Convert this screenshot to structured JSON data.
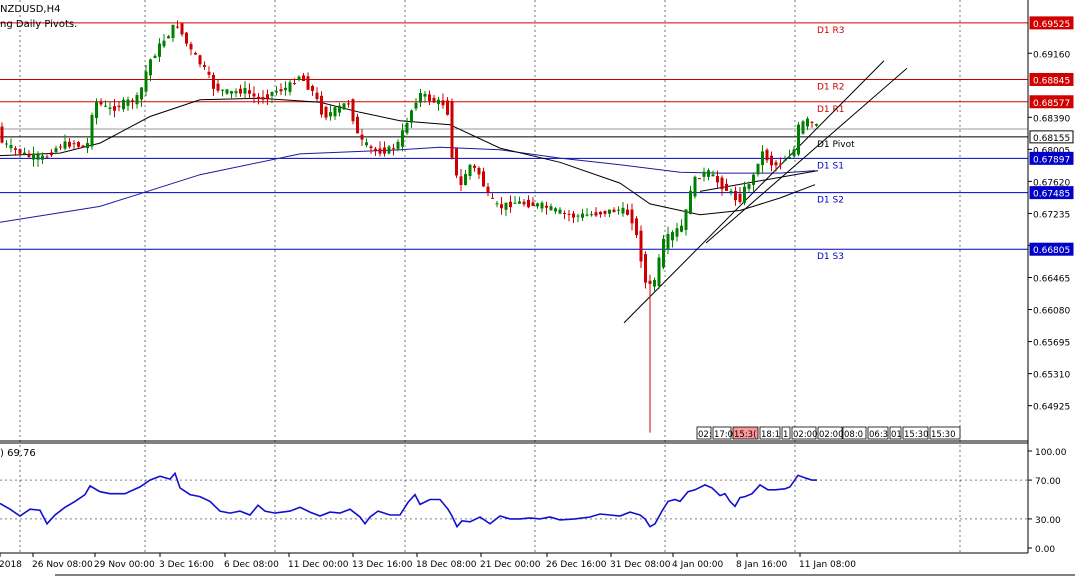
{
  "chart_data": {
    "type": "candlestick",
    "title": "NZDUSD,H4",
    "subtitle": "ng Daily Pivots.",
    "y_range": [
      0.645,
      0.698
    ],
    "y_ticks": [
      "0.69160",
      "0.68390",
      "0.68005",
      "0.67620",
      "0.67235",
      "0.66850",
      "0.66465",
      "0.66080",
      "0.65695",
      "0.65310",
      "0.64925"
    ],
    "x_labels": [
      "2018",
      "26 Nov 08:00",
      "29 Nov 00:00",
      "3 Dec 16:00",
      "6 Dec 08:00",
      "11 Dec 00:00",
      "13 Dec 16:00",
      "18 Dec 08:00",
      "21 Dec 00:00",
      "26 Dec 16:00",
      "31 Dec 08:00",
      "4 Jan 00:00",
      "8 Jan 16:00",
      "11 Jan 08:00"
    ],
    "price_path": [
      [
        0,
        0.6811
      ],
      [
        15,
        0.68
      ],
      [
        30,
        0.6792
      ],
      [
        45,
        0.679
      ],
      [
        60,
        0.6805
      ],
      [
        75,
        0.6808
      ],
      [
        88,
        0.68
      ],
      [
        95,
        0.686
      ],
      [
        110,
        0.6848
      ],
      [
        125,
        0.6856
      ],
      [
        140,
        0.6862
      ],
      [
        150,
        0.6905
      ],
      [
        165,
        0.6932
      ],
      [
        178,
        0.6952
      ],
      [
        190,
        0.6922
      ],
      [
        205,
        0.6898
      ],
      [
        215,
        0.6875
      ],
      [
        230,
        0.6868
      ],
      [
        245,
        0.6872
      ],
      [
        260,
        0.686
      ],
      [
        275,
        0.687
      ],
      [
        290,
        0.6875
      ],
      [
        300,
        0.689
      ],
      [
        315,
        0.6868
      ],
      [
        325,
        0.684
      ],
      [
        340,
        0.685
      ],
      [
        350,
        0.6858
      ],
      [
        360,
        0.6812
      ],
      [
        375,
        0.6798
      ],
      [
        390,
        0.68
      ],
      [
        400,
        0.6808
      ],
      [
        410,
        0.684
      ],
      [
        420,
        0.6868
      ],
      [
        435,
        0.6858
      ],
      [
        448,
        0.6855
      ],
      [
        455,
        0.6775
      ],
      [
        462,
        0.6755
      ],
      [
        470,
        0.6783
      ],
      [
        480,
        0.6772
      ],
      [
        490,
        0.6742
      ],
      [
        500,
        0.673
      ],
      [
        515,
        0.6737
      ],
      [
        530,
        0.6735
      ],
      [
        545,
        0.6732
      ],
      [
        560,
        0.6725
      ],
      [
        575,
        0.672
      ],
      [
        590,
        0.6722
      ],
      [
        605,
        0.6725
      ],
      [
        620,
        0.6728
      ],
      [
        632,
        0.6722
      ],
      [
        640,
        0.6685
      ],
      [
        648,
        0.6632
      ],
      [
        655,
        0.664
      ],
      [
        665,
        0.669
      ],
      [
        675,
        0.67
      ],
      [
        685,
        0.671
      ],
      [
        692,
        0.6755
      ],
      [
        700,
        0.677
      ],
      [
        710,
        0.6772
      ],
      [
        720,
        0.676
      ],
      [
        730,
        0.675
      ],
      [
        740,
        0.6738
      ],
      [
        748,
        0.6758
      ],
      [
        755,
        0.6768
      ],
      [
        762,
        0.6799
      ],
      [
        775,
        0.678
      ],
      [
        785,
        0.6788
      ],
      [
        795,
        0.6798
      ],
      [
        800,
        0.6828
      ],
      [
        808,
        0.6835
      ],
      [
        818,
        0.6828
      ]
    ],
    "ma_slow_path": [
      [
        0,
        0.6713
      ],
      [
        100,
        0.6732
      ],
      [
        200,
        0.677
      ],
      [
        300,
        0.6795
      ],
      [
        400,
        0.68
      ],
      [
        440,
        0.6803
      ],
      [
        500,
        0.68
      ],
      [
        560,
        0.679
      ],
      [
        620,
        0.6782
      ],
      [
        680,
        0.6773
      ],
      [
        720,
        0.6772
      ],
      [
        780,
        0.6772
      ],
      [
        815,
        0.6775
      ]
    ],
    "ma_fast_path": [
      [
        0,
        0.6793
      ],
      [
        60,
        0.6796
      ],
      [
        100,
        0.6808
      ],
      [
        150,
        0.684
      ],
      [
        200,
        0.686
      ],
      [
        260,
        0.6862
      ],
      [
        320,
        0.6857
      ],
      [
        360,
        0.6845
      ],
      [
        400,
        0.6835
      ],
      [
        450,
        0.683
      ],
      [
        500,
        0.6802
      ],
      [
        560,
        0.6785
      ],
      [
        620,
        0.676
      ],
      [
        650,
        0.6735
      ],
      [
        700,
        0.6722
      ],
      [
        740,
        0.6727
      ],
      [
        780,
        0.6742
      ],
      [
        815,
        0.6758
      ]
    ],
    "channel_lines": [
      {
        "from": [
          624,
          0.6592
        ],
        "to": [
          884,
          0.6907
        ]
      },
      {
        "from": [
          706,
          0.6688
        ],
        "to": [
          907,
          0.6898
        ]
      },
      {
        "from": [
          700,
          0.675
        ],
        "to": [
          818,
          0.6775
        ]
      }
    ],
    "pivots": [
      {
        "label": "D1 R3",
        "value": 0.69525,
        "price_tag": "0.69525",
        "color": "#d10000"
      },
      {
        "label": "D1 R2",
        "value": 0.68845,
        "price_tag": "0.68845",
        "color": "#d10000"
      },
      {
        "label": "D1 R1",
        "value": 0.68577,
        "price_tag": "0.68577",
        "color": "#d10000"
      },
      {
        "label": "D1 Pivot",
        "value": 0.68155,
        "price_tag": "0.68155",
        "color": "#000000"
      },
      {
        "label": "D1 S1",
        "value": 0.67897,
        "price_tag": "0.67897",
        "color": "#0000c8"
      },
      {
        "label": "D1 S2",
        "value": 0.67485,
        "price_tag": "0.67485",
        "color": "#0000c8"
      },
      {
        "label": "D1 S3",
        "value": 0.66805,
        "price_tag": "0.66805",
        "color": "#0000c8"
      }
    ],
    "time_boxes": [
      "02:",
      "17:0",
      "15:3(",
      "18:1",
      "1",
      "02:00",
      "02:00",
      "08:0",
      "06:3",
      "01",
      "15:30",
      "15:30"
    ],
    "indicator": {
      "label": ") 69.76",
      "y_range": [
        0,
        100
      ],
      "y_ticks": [
        "100.00",
        "70.00",
        "30.00",
        "0.00"
      ],
      "levels": [
        70,
        30
      ],
      "path": [
        [
          0,
          46
        ],
        [
          10,
          40
        ],
        [
          20,
          33
        ],
        [
          30,
          40
        ],
        [
          40,
          39
        ],
        [
          47,
          25
        ],
        [
          55,
          34
        ],
        [
          65,
          42
        ],
        [
          75,
          48
        ],
        [
          85,
          55
        ],
        [
          90,
          64
        ],
        [
          100,
          58
        ],
        [
          110,
          56
        ],
        [
          125,
          56
        ],
        [
          140,
          63
        ],
        [
          150,
          70
        ],
        [
          160,
          74
        ],
        [
          170,
          71
        ],
        [
          175,
          77
        ],
        [
          180,
          62
        ],
        [
          190,
          55
        ],
        [
          200,
          53
        ],
        [
          210,
          48
        ],
        [
          220,
          38
        ],
        [
          230,
          36
        ],
        [
          240,
          38
        ],
        [
          250,
          34
        ],
        [
          258,
          44
        ],
        [
          265,
          38
        ],
        [
          275,
          36
        ],
        [
          290,
          38
        ],
        [
          300,
          42
        ],
        [
          310,
          37
        ],
        [
          320,
          33
        ],
        [
          330,
          37
        ],
        [
          340,
          36
        ],
        [
          350,
          40
        ],
        [
          360,
          32
        ],
        [
          365,
          25
        ],
        [
          370,
          32
        ],
        [
          378,
          38
        ],
        [
          390,
          34
        ],
        [
          400,
          34
        ],
        [
          408,
          47
        ],
        [
          415,
          55
        ],
        [
          420,
          45
        ],
        [
          430,
          50
        ],
        [
          440,
          50
        ],
        [
          448,
          40
        ],
        [
          452,
          33
        ],
        [
          457,
          22
        ],
        [
          462,
          28
        ],
        [
          470,
          27
        ],
        [
          480,
          32
        ],
        [
          490,
          25
        ],
        [
          500,
          33
        ],
        [
          510,
          30
        ],
        [
          520,
          30
        ],
        [
          530,
          31
        ],
        [
          540,
          30
        ],
        [
          550,
          32
        ],
        [
          560,
          29
        ],
        [
          575,
          30
        ],
        [
          590,
          32
        ],
        [
          600,
          35
        ],
        [
          610,
          34
        ],
        [
          620,
          33
        ],
        [
          630,
          37
        ],
        [
          640,
          34
        ],
        [
          645,
          30
        ],
        [
          650,
          22
        ],
        [
          655,
          25
        ],
        [
          662,
          38
        ],
        [
          668,
          48
        ],
        [
          675,
          50
        ],
        [
          680,
          48
        ],
        [
          688,
          58
        ],
        [
          695,
          60
        ],
        [
          705,
          65
        ],
        [
          712,
          62
        ],
        [
          720,
          54
        ],
        [
          725,
          56
        ],
        [
          730,
          48
        ],
        [
          735,
          43
        ],
        [
          740,
          52
        ],
        [
          745,
          53
        ],
        [
          752,
          56
        ],
        [
          760,
          65
        ],
        [
          768,
          60
        ],
        [
          775,
          60
        ],
        [
          785,
          61
        ],
        [
          790,
          63
        ],
        [
          798,
          75
        ],
        [
          806,
          72
        ],
        [
          812,
          70
        ],
        [
          817,
          70
        ]
      ]
    }
  }
}
